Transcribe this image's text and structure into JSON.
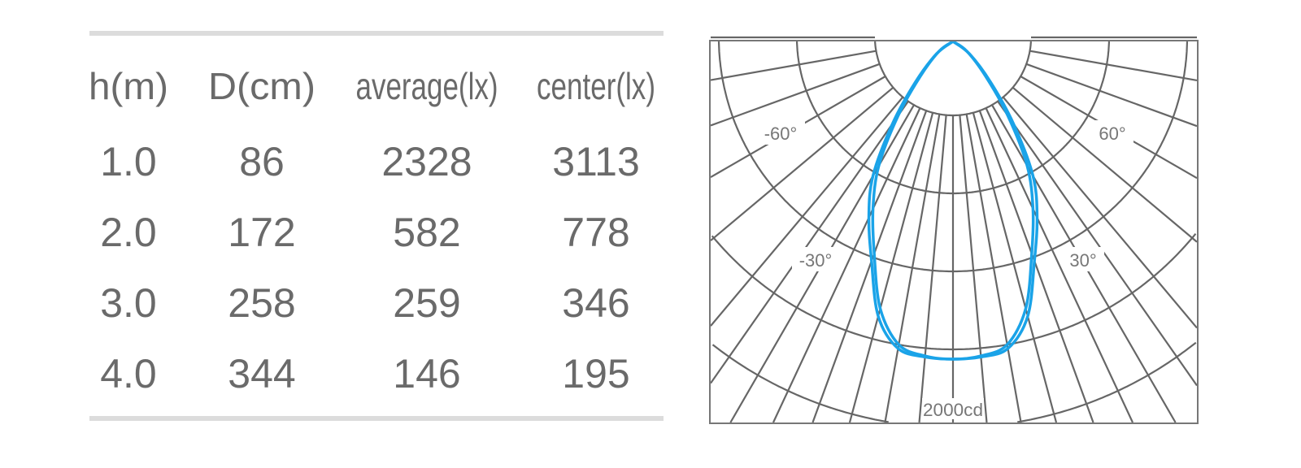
{
  "table": {
    "headers": [
      "h(m)",
      "D(cm)",
      "average(lx)",
      "center(lx)"
    ],
    "rows": [
      [
        "1.0",
        "86",
        "2328",
        "3113"
      ],
      [
        "2.0",
        "172",
        "582",
        "778"
      ],
      [
        "3.0",
        "258",
        "259",
        "346"
      ],
      [
        "4.0",
        "344",
        "146",
        "195"
      ]
    ]
  },
  "chart_data": {
    "type": "polar",
    "title": "",
    "angle_labels": [
      "-60°",
      "60°",
      "-30°",
      "30°"
    ],
    "radial_label": "2000cd",
    "radial_max_cd": 2000,
    "ring_step_cd": 400,
    "angle_range_deg": [
      -90,
      90
    ],
    "grid": true,
    "series_color": "#1aa3e8",
    "grid_color": "#666666",
    "series": [
      {
        "angles": [
          0,
          5,
          10,
          15,
          20,
          25,
          30,
          35,
          40,
          45,
          50
        ],
        "values": [
          1650,
          1645,
          1620,
          1480,
          1220,
          1020,
          820,
          540,
          300,
          120,
          0
        ]
      },
      {
        "angles": [
          0,
          5,
          10,
          15,
          20,
          25,
          30,
          35,
          40,
          45,
          50
        ],
        "values": [
          1650,
          1640,
          1600,
          1440,
          1180,
          970,
          760,
          490,
          260,
          100,
          0
        ]
      }
    ]
  }
}
